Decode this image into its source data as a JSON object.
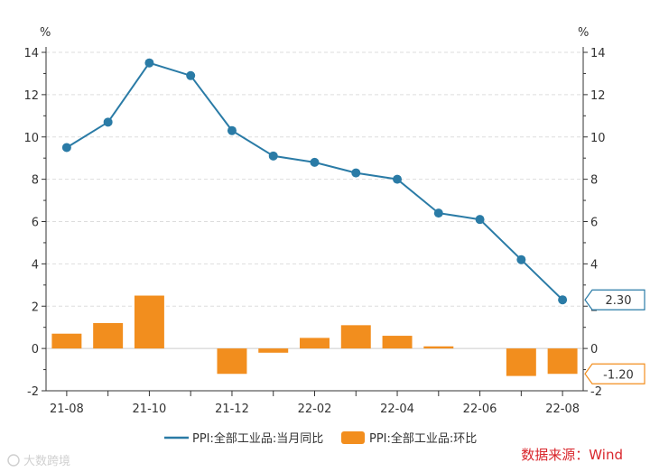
{
  "chart_data": {
    "type": "bar+line",
    "categories": [
      "21-08",
      "21-09",
      "21-10",
      "21-11",
      "21-12",
      "22-01",
      "22-02",
      "22-03",
      "22-04",
      "22-05",
      "22-06",
      "22-07",
      "22-08"
    ],
    "x_tick_labels": [
      "21-08",
      "21-10",
      "21-12",
      "22-02",
      "22-04",
      "22-06",
      "22-08"
    ],
    "series": [
      {
        "name": "PPI:全部工业品:当月同比",
        "type": "line",
        "color": "#2a7ba6",
        "values": [
          9.5,
          10.7,
          13.5,
          12.9,
          10.3,
          9.1,
          8.8,
          8.3,
          8.0,
          6.4,
          6.1,
          4.2,
          2.3
        ]
      },
      {
        "name": "PPI:全部工业品:环比",
        "type": "bar",
        "color": "#f28e1e",
        "values": [
          0.7,
          1.2,
          2.5,
          0.0,
          -1.2,
          -0.2,
          0.5,
          1.1,
          0.6,
          0.1,
          0.0,
          -1.3,
          -1.2
        ]
      }
    ],
    "y_left": {
      "label": "%",
      "min": -2,
      "max": 14,
      "ticks": [
        -2,
        0,
        2,
        4,
        6,
        8,
        10,
        12,
        14
      ]
    },
    "y_right": {
      "label": "%",
      "min": -2,
      "max": 14,
      "ticks": [
        -2,
        0,
        2,
        4,
        6,
        8,
        10,
        12,
        14
      ]
    },
    "annotations": [
      {
        "text": "2.30",
        "series": 0,
        "value": 2.3,
        "color": "#2a7ba6"
      },
      {
        "text": "-1.20",
        "series": 1,
        "value": -1.2,
        "color": "#f28e1e"
      }
    ],
    "grid": true,
    "legend_position": "bottom"
  },
  "source_text": "数据来源：Wind",
  "watermark_text": "大数跨境"
}
